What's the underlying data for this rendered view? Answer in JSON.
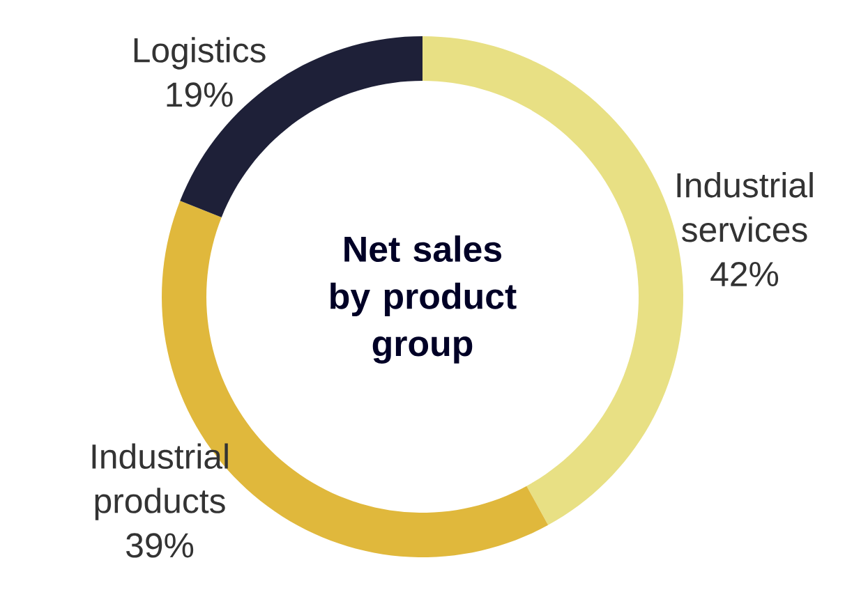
{
  "chart_data": {
    "type": "donut",
    "title": "Net sales by product group",
    "categories": [
      "Industrial services",
      "Industrial products",
      "Logistics"
    ],
    "values": [
      42,
      39,
      19
    ],
    "value_labels": [
      "42%",
      "39%",
      "19%"
    ],
    "colors": [
      "#e8e084",
      "#e0b83c",
      "#1e2038"
    ]
  }
}
